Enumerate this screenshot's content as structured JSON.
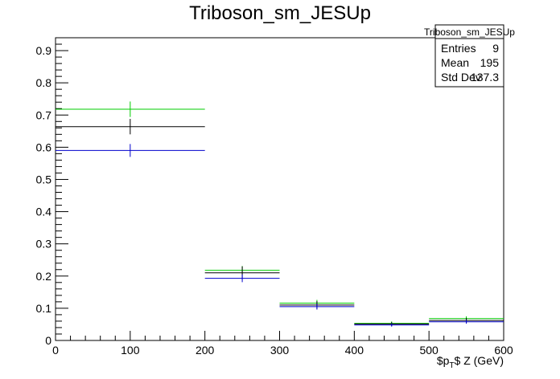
{
  "chart_data": {
    "type": "histogram",
    "title": "Triboson_sm_JESUp",
    "xlabel": "$p_T$ Z (GeV)",
    "xlabel_parts": {
      "prefix": "$p",
      "subscript": "T",
      "suffix": "$ Z (GeV)"
    },
    "ylabel": "",
    "xlim": [
      0,
      600
    ],
    "ylim": [
      0,
      0.94
    ],
    "x_ticks": [
      0,
      100,
      200,
      300,
      400,
      500,
      600
    ],
    "y_ticks": [
      0,
      0.1,
      0.2,
      0.3,
      0.4,
      0.5,
      0.6,
      0.7,
      0.8,
      0.9
    ],
    "y_tick_labels": [
      "0",
      "0.1",
      "0.2",
      "0.3",
      "0.4",
      "0.5",
      "0.6",
      "0.7",
      "0.8",
      "0.9"
    ],
    "grid": false,
    "legend": "none",
    "bins": [
      {
        "low": 0,
        "high": 200,
        "center": 100
      },
      {
        "low": 200,
        "high": 300,
        "center": 250
      },
      {
        "low": 300,
        "high": 400,
        "center": 350
      },
      {
        "low": 400,
        "high": 500,
        "center": 450
      },
      {
        "low": 500,
        "high": 600,
        "center": 550
      }
    ],
    "series": [
      {
        "color": "#00cc00",
        "values": [
          0.718,
          0.218,
          0.116,
          0.053,
          0.068
        ],
        "errors": [
          0.024,
          0.013,
          0.01,
          0.006,
          0.007
        ]
      },
      {
        "color": "#000000",
        "values": [
          0.664,
          0.21,
          0.11,
          0.051,
          0.062
        ],
        "errors": [
          0.024,
          0.02,
          0.012,
          0.006,
          0.008
        ]
      },
      {
        "color": "#0000cc",
        "values": [
          0.59,
          0.193,
          0.105,
          0.048,
          0.058
        ],
        "errors": [
          0.02,
          0.012,
          0.009,
          0.005,
          0.006
        ]
      }
    ],
    "stats_box": {
      "title": "Triboson_sm_JESUp",
      "rows": [
        {
          "label": "Entries",
          "value": "9"
        },
        {
          "label": "Mean",
          "value": "195"
        },
        {
          "label": "Std Dev",
          "value": "137.3"
        }
      ]
    }
  }
}
